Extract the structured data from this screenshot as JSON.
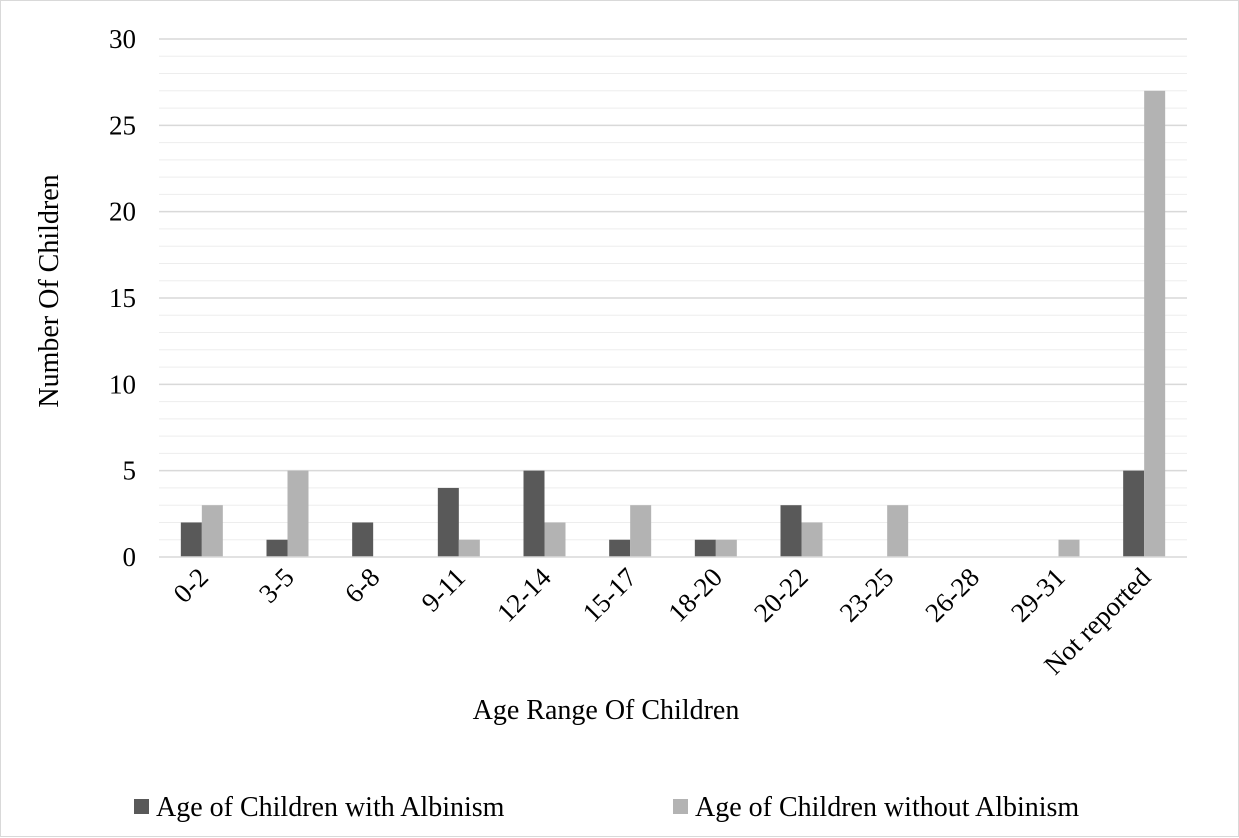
{
  "chart_data": {
    "type": "bar",
    "title": "",
    "xlabel": "Age Range Of Children",
    "ylabel": "Number Of Children",
    "ylim": [
      0,
      30
    ],
    "y_ticks": [
      0,
      5,
      10,
      15,
      20,
      25,
      30
    ],
    "minor_gridline_step": 1,
    "grid": true,
    "legend_position": "bottom",
    "categories": [
      "0-2",
      "3-5",
      "6-8",
      "9-11",
      "12-14",
      "15-17",
      "18-20",
      "20-22",
      "23-25",
      "26-28",
      "29-31",
      "Not reported"
    ],
    "series": [
      {
        "name": "Age of Children with Albinism",
        "color": "#595959",
        "values": [
          2,
          1,
          2,
          4,
          5,
          1,
          1,
          3,
          0,
          0,
          0,
          5
        ]
      },
      {
        "name": "Age of Children without Albinism",
        "color": "#b3b3b3",
        "values": [
          3,
          5,
          0,
          1,
          2,
          3,
          1,
          2,
          3,
          0,
          1,
          27
        ]
      }
    ]
  }
}
